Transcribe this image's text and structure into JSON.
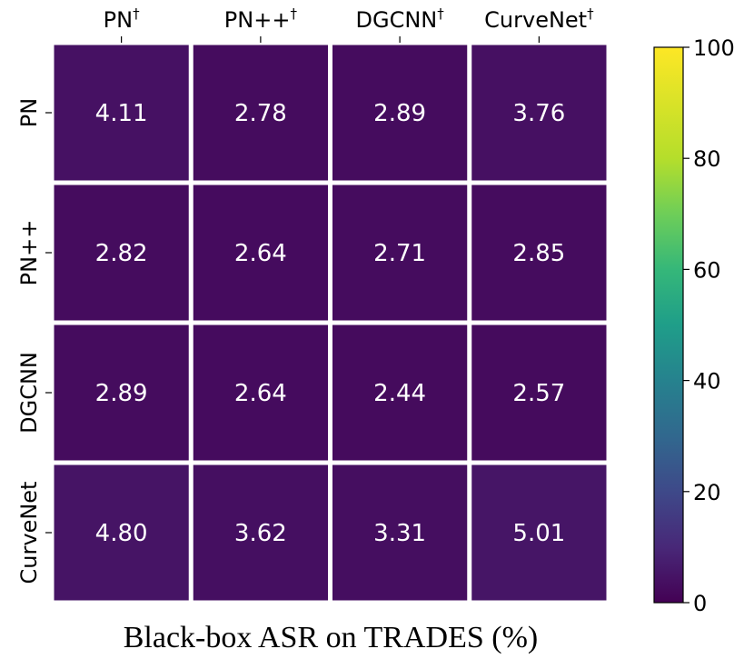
{
  "chart_data": {
    "type": "heatmap",
    "title": "",
    "xlabel": "Black-box ASR on TRADES (%)",
    "ylabel": "",
    "x_categories": [
      "PN",
      "PN++",
      "DGCNN",
      "CurveNet"
    ],
    "x_tick_suffix": "†",
    "y_categories": [
      "PN",
      "PN++",
      "DGCNN",
      "CurveNet"
    ],
    "values": [
      [
        4.11,
        2.78,
        2.89,
        3.76
      ],
      [
        2.82,
        2.64,
        2.71,
        2.85
      ],
      [
        2.89,
        2.64,
        2.44,
        2.57
      ],
      [
        4.8,
        3.62,
        3.31,
        5.01
      ]
    ],
    "value_labels": [
      [
        "4.11",
        "2.78",
        "2.89",
        "3.76"
      ],
      [
        "2.82",
        "2.64",
        "2.71",
        "2.85"
      ],
      [
        "2.89",
        "2.64",
        "2.44",
        "2.57"
      ],
      [
        "4.80",
        "3.62",
        "3.31",
        "5.01"
      ]
    ],
    "colormap": "viridis",
    "colorbar": {
      "range": [
        0,
        100
      ],
      "ticks": [
        0,
        20,
        40,
        60,
        80,
        100
      ]
    },
    "grid": false
  }
}
